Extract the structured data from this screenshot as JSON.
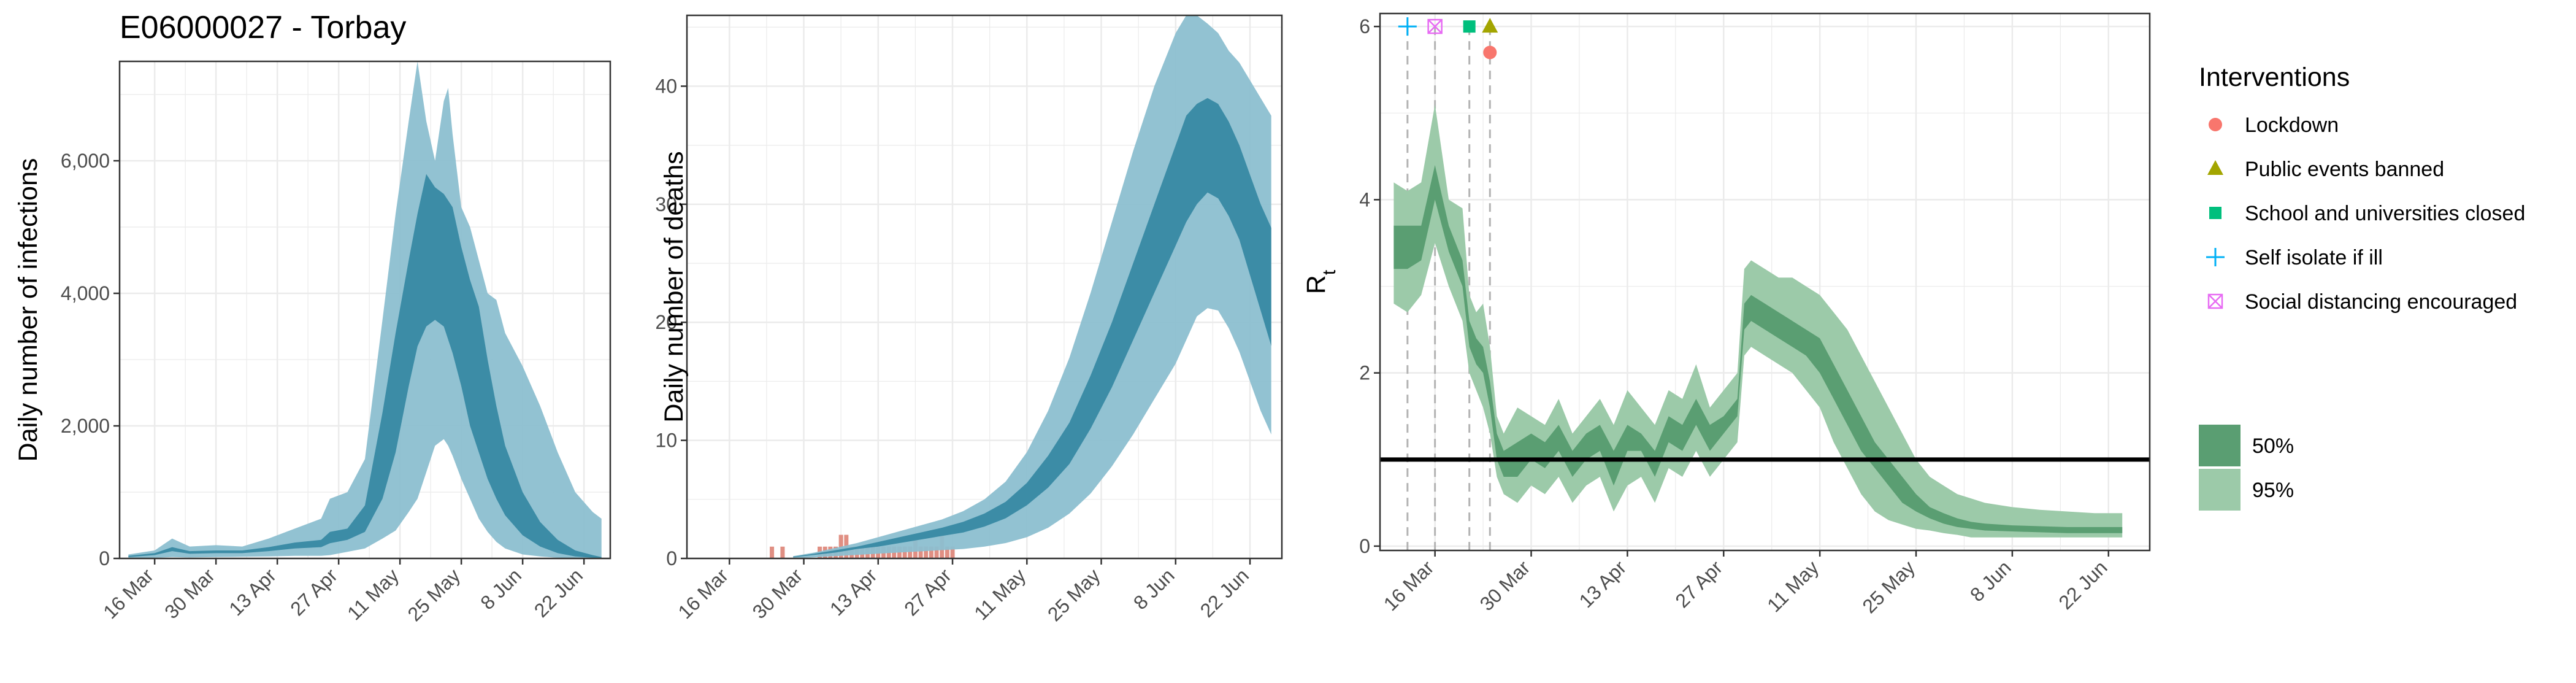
{
  "figure": {
    "title": "E06000027 - Torbay",
    "legend": {
      "interventions_title": "Interventions",
      "interventions": [
        {
          "label": "Lockdown",
          "shape": "circle",
          "color": "#F8766D"
        },
        {
          "label": "Public events banned",
          "shape": "triangle",
          "color": "#A3A500"
        },
        {
          "label": "School and universities closed",
          "shape": "square",
          "color": "#00BF7D"
        },
        {
          "label": "Self isolate if ill",
          "shape": "plus",
          "color": "#00B0F6"
        },
        {
          "label": "Social distancing encouraged",
          "shape": "boxx",
          "color": "#E76BF3"
        }
      ],
      "bands": [
        {
          "label": "50%",
          "color": "#5a9e72"
        },
        {
          "label": "95%",
          "color": "#9ccaa9"
        }
      ]
    },
    "colors": {
      "infection_band_95": "#8cbfd0",
      "infection_band_50": "#3c8ca6",
      "infection_median": "#2f7f9a",
      "deaths_observed": "#e08f83",
      "rt_band_95": "#9ccaa9",
      "rt_band_50": "#5a9e72",
      "grid": "#ebebeb",
      "panel_border": "#333333"
    }
  },
  "chart_data": [
    {
      "id": "infections",
      "type": "area",
      "title": "",
      "xlabel": "",
      "ylabel": "Daily number of infections",
      "x_tick_labels": [
        "16 Mar",
        "30 Mar",
        "13 Apr",
        "27 Apr",
        "11 May",
        "25 May",
        "8 Jun",
        "22 Jun"
      ],
      "x_ticks": [
        0,
        14,
        28,
        42,
        56,
        70,
        84,
        98
      ],
      "xlim": [
        -8,
        104
      ],
      "ylim": [
        0,
        7500
      ],
      "y_ticks": [
        0,
        2000,
        4000,
        6000
      ],
      "y_tick_labels": [
        "0",
        "2,000",
        "4,000",
        "6,000"
      ],
      "grid": true,
      "band_95": {
        "x": [
          -6,
          0,
          4,
          8,
          14,
          20,
          26,
          32,
          38,
          40,
          44,
          48,
          52,
          55,
          58,
          60,
          62,
          64,
          66,
          67,
          68,
          70,
          72,
          74,
          76,
          78,
          80,
          84,
          88,
          92,
          96,
          100,
          102
        ],
        "low": [
          0,
          10,
          20,
          15,
          20,
          25,
          30,
          40,
          40,
          50,
          100,
          150,
          300,
          420,
          700,
          900,
          1300,
          1700,
          1800,
          1700,
          1550,
          1200,
          900,
          600,
          400,
          250,
          150,
          60,
          30,
          10,
          5,
          2,
          0
        ],
        "high": [
          60,
          120,
          300,
          180,
          200,
          180,
          300,
          450,
          600,
          900,
          1000,
          1500,
          3600,
          5200,
          6600,
          7500,
          6600,
          6000,
          6900,
          7100,
          6400,
          5300,
          5000,
          4500,
          4000,
          3900,
          3400,
          2900,
          2300,
          1600,
          1000,
          700,
          600
        ]
      },
      "band_50": {
        "x": [
          -6,
          0,
          4,
          8,
          14,
          20,
          26,
          32,
          38,
          40,
          44,
          48,
          52,
          55,
          58,
          60,
          62,
          64,
          66,
          68,
          70,
          72,
          74,
          76,
          78,
          80,
          84,
          88,
          92,
          96,
          100,
          102
        ],
        "low": [
          20,
          50,
          110,
          70,
          80,
          80,
          110,
          150,
          170,
          230,
          280,
          400,
          900,
          1600,
          2600,
          3200,
          3500,
          3600,
          3500,
          3100,
          2600,
          2000,
          1600,
          1200,
          900,
          650,
          350,
          180,
          80,
          30,
          10,
          5
        ],
        "high": [
          40,
          80,
          170,
          110,
          120,
          120,
          170,
          240,
          280,
          400,
          450,
          800,
          2200,
          3400,
          4500,
          5200,
          5800,
          5600,
          5500,
          5300,
          4700,
          4200,
          3800,
          3000,
          2300,
          1700,
          1000,
          550,
          280,
          120,
          50,
          20
        ]
      }
    },
    {
      "id": "deaths",
      "type": "area",
      "title": "",
      "xlabel": "",
      "ylabel": "Daily number of deaths",
      "x_tick_labels": [
        "16 Mar",
        "30 Mar",
        "13 Apr",
        "27 Apr",
        "11 May",
        "25 May",
        "8 Jun",
        "22 Jun"
      ],
      "x_ticks": [
        0,
        14,
        28,
        42,
        56,
        70,
        84,
        98
      ],
      "xlim": [
        -8,
        104
      ],
      "ylim": [
        0,
        46
      ],
      "y_ticks": [
        0,
        10,
        20,
        30,
        40
      ],
      "y_tick_labels": [
        "0",
        "10",
        "20",
        "30",
        "40"
      ],
      "grid": true,
      "observed": {
        "x": [
          8,
          10,
          17,
          18,
          19,
          20,
          21,
          22,
          23,
          24,
          25,
          26,
          27,
          28,
          29,
          30,
          31,
          32,
          33,
          34,
          35,
          36,
          37,
          38,
          39,
          40,
          41,
          42
        ],
        "values": [
          1,
          1,
          1,
          1,
          1,
          1,
          2,
          2,
          1,
          1,
          1,
          1,
          1,
          1,
          1,
          1,
          1,
          1,
          1,
          1,
          2,
          1,
          1,
          1,
          1,
          2,
          1,
          1
        ]
      },
      "band_95": {
        "x": [
          12,
          16,
          20,
          24,
          28,
          32,
          36,
          40,
          44,
          48,
          52,
          56,
          60,
          64,
          68,
          72,
          76,
          80,
          84,
          86,
          88,
          90,
          92,
          94,
          96,
          98,
          100,
          102
        ],
        "low": [
          0,
          0.1,
          0.2,
          0.3,
          0.4,
          0.5,
          0.6,
          0.7,
          0.8,
          1.0,
          1.3,
          1.8,
          2.6,
          3.8,
          5.5,
          7.8,
          10.5,
          13.5,
          16.5,
          18.5,
          20.5,
          21.2,
          21.0,
          19.5,
          17.5,
          15.0,
          12.5,
          10.5
        ],
        "high": [
          0.2,
          0.5,
          0.9,
          1.3,
          1.8,
          2.3,
          2.8,
          3.3,
          4.0,
          5.0,
          6.5,
          9.0,
          12.5,
          17.0,
          22.5,
          28.5,
          34.5,
          40.0,
          44.5,
          46.0,
          46.0,
          45.3,
          44.5,
          43.0,
          42.0,
          40.5,
          39.0,
          37.5
        ]
      },
      "band_50": {
        "x": [
          12,
          16,
          20,
          24,
          28,
          32,
          36,
          40,
          44,
          48,
          52,
          56,
          60,
          64,
          68,
          72,
          76,
          80,
          84,
          86,
          88,
          90,
          92,
          94,
          96,
          98,
          100,
          102
        ],
        "low": [
          0.1,
          0.3,
          0.5,
          0.8,
          1.0,
          1.3,
          1.6,
          1.9,
          2.2,
          2.7,
          3.4,
          4.5,
          6.0,
          8.0,
          11.0,
          14.5,
          18.5,
          22.5,
          26.5,
          28.5,
          30.0,
          31.0,
          30.5,
          29.0,
          27.0,
          24.0,
          21.0,
          18.0
        ],
        "high": [
          0.15,
          0.4,
          0.7,
          1.0,
          1.4,
          1.8,
          2.2,
          2.6,
          3.1,
          3.8,
          4.8,
          6.4,
          8.7,
          11.5,
          15.5,
          20.0,
          25.0,
          30.0,
          35.0,
          37.5,
          38.5,
          39.0,
          38.5,
          37.0,
          35.0,
          32.5,
          30.0,
          28.0
        ]
      }
    },
    {
      "id": "rt",
      "type": "area",
      "title": "",
      "xlabel": "",
      "ylabel": "R",
      "ylabel_subscript": "t",
      "x_tick_labels": [
        "16 Mar",
        "30 Mar",
        "13 Apr",
        "27 Apr",
        "11 May",
        "25 May",
        "8 Jun",
        "22 Jun"
      ],
      "x_ticks": [
        0,
        14,
        28,
        42,
        56,
        70,
        84,
        98
      ],
      "xlim": [
        -8,
        104
      ],
      "ylim": [
        -0.05,
        6.15
      ],
      "y_ticks": [
        0,
        2,
        4,
        6
      ],
      "y_tick_labels": [
        "0",
        "2",
        "4",
        "6"
      ],
      "grid": true,
      "reference_line": 1,
      "intervention_lines_x": [
        -4,
        0,
        5,
        8
      ],
      "intervention_markers": [
        {
          "shape": "plus",
          "x": -4,
          "y": 6.0
        },
        {
          "shape": "boxx",
          "x": 0,
          "y": 6.0
        },
        {
          "shape": "square",
          "x": 5,
          "y": 6.0
        },
        {
          "shape": "triangle",
          "x": 8,
          "y": 6.0
        },
        {
          "shape": "circle",
          "x": 8,
          "y": 5.7
        }
      ],
      "band_95": {
        "x": [
          -6,
          -4,
          -2,
          0,
          2,
          4,
          5,
          6,
          7,
          8,
          9,
          10,
          12,
          14,
          16,
          18,
          20,
          22,
          24,
          26,
          28,
          30,
          32,
          34,
          36,
          38,
          40,
          42,
          44,
          45,
          46,
          48,
          50,
          52,
          54,
          56,
          58,
          60,
          62,
          64,
          66,
          68,
          70,
          72,
          74,
          76,
          78,
          80,
          84,
          88,
          92,
          96,
          100
        ],
        "low": [
          2.8,
          2.7,
          2.9,
          3.5,
          3.0,
          2.6,
          2.0,
          1.8,
          1.6,
          1.3,
          0.8,
          0.6,
          0.5,
          0.7,
          0.6,
          0.8,
          0.5,
          0.7,
          0.8,
          0.4,
          0.7,
          0.8,
          0.5,
          0.9,
          0.8,
          1.1,
          0.8,
          1.0,
          1.2,
          2.2,
          2.3,
          2.2,
          2.1,
          2.0,
          1.8,
          1.6,
          1.2,
          0.9,
          0.6,
          0.4,
          0.3,
          0.25,
          0.2,
          0.18,
          0.15,
          0.13,
          0.1,
          0.1,
          0.1,
          0.1,
          0.1,
          0.1,
          0.1
        ],
        "high": [
          4.2,
          4.1,
          4.2,
          5.1,
          4.0,
          3.9,
          2.9,
          2.7,
          2.8,
          2.3,
          1.5,
          1.3,
          1.6,
          1.5,
          1.4,
          1.7,
          1.3,
          1.5,
          1.7,
          1.4,
          1.8,
          1.6,
          1.4,
          1.8,
          1.7,
          2.1,
          1.6,
          1.8,
          2.0,
          3.2,
          3.3,
          3.2,
          3.1,
          3.1,
          3.0,
          2.9,
          2.7,
          2.5,
          2.2,
          1.9,
          1.6,
          1.3,
          1.0,
          0.8,
          0.7,
          0.6,
          0.55,
          0.5,
          0.45,
          0.42,
          0.4,
          0.38,
          0.38
        ]
      },
      "band_50": {
        "x": [
          -6,
          -4,
          -2,
          0,
          2,
          4,
          5,
          6,
          7,
          8,
          9,
          10,
          12,
          14,
          16,
          18,
          20,
          22,
          24,
          26,
          28,
          30,
          32,
          34,
          36,
          38,
          40,
          42,
          44,
          45,
          46,
          48,
          50,
          52,
          54,
          56,
          58,
          60,
          62,
          64,
          66,
          68,
          70,
          72,
          74,
          76,
          78,
          80,
          84,
          88,
          92,
          96,
          100
        ],
        "low": [
          3.2,
          3.2,
          3.3,
          4.0,
          3.4,
          3.0,
          2.3,
          2.1,
          2.0,
          1.6,
          1.0,
          0.8,
          0.8,
          1.0,
          0.9,
          1.1,
          0.8,
          1.0,
          1.1,
          0.7,
          1.1,
          1.1,
          0.8,
          1.2,
          1.1,
          1.4,
          1.1,
          1.3,
          1.5,
          2.5,
          2.6,
          2.5,
          2.4,
          2.3,
          2.2,
          2.0,
          1.7,
          1.4,
          1.1,
          0.9,
          0.7,
          0.5,
          0.4,
          0.32,
          0.26,
          0.22,
          0.2,
          0.18,
          0.17,
          0.16,
          0.15,
          0.15,
          0.15
        ],
        "high": [
          3.7,
          3.7,
          3.7,
          4.4,
          3.7,
          3.3,
          2.6,
          2.4,
          2.3,
          1.9,
          1.3,
          1.1,
          1.2,
          1.3,
          1.2,
          1.4,
          1.1,
          1.3,
          1.4,
          1.1,
          1.4,
          1.3,
          1.1,
          1.5,
          1.4,
          1.7,
          1.4,
          1.5,
          1.7,
          2.8,
          2.9,
          2.8,
          2.7,
          2.6,
          2.5,
          2.4,
          2.1,
          1.8,
          1.5,
          1.2,
          1.0,
          0.8,
          0.6,
          0.45,
          0.38,
          0.32,
          0.28,
          0.26,
          0.24,
          0.23,
          0.22,
          0.22,
          0.22
        ]
      }
    }
  ]
}
